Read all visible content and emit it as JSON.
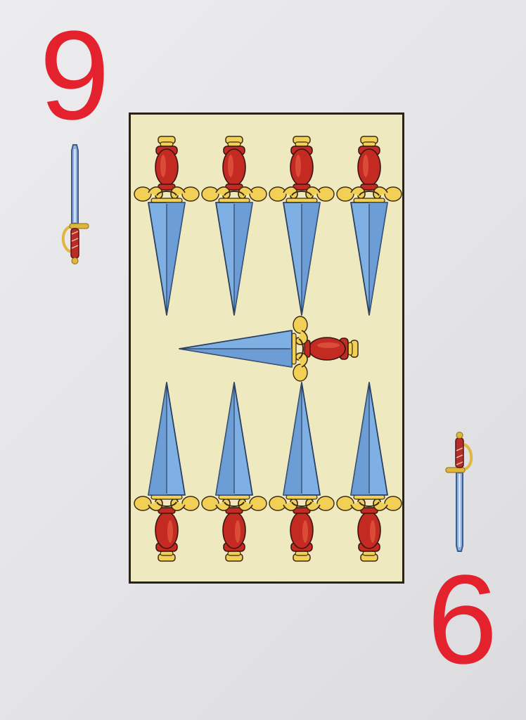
{
  "card": {
    "suit": "swords",
    "rank_top": "9",
    "rank_bottom": "9",
    "pip_count": 9
  },
  "colors": {
    "rank": "#e3222d",
    "panel_fill": "#efe9bf",
    "panel_border": "#2a2418",
    "blade": "#7fb0e3",
    "blade_dark": "#4f7fb8",
    "hilt_red": "#c22a22",
    "hilt_gold": "#f2cf55"
  }
}
